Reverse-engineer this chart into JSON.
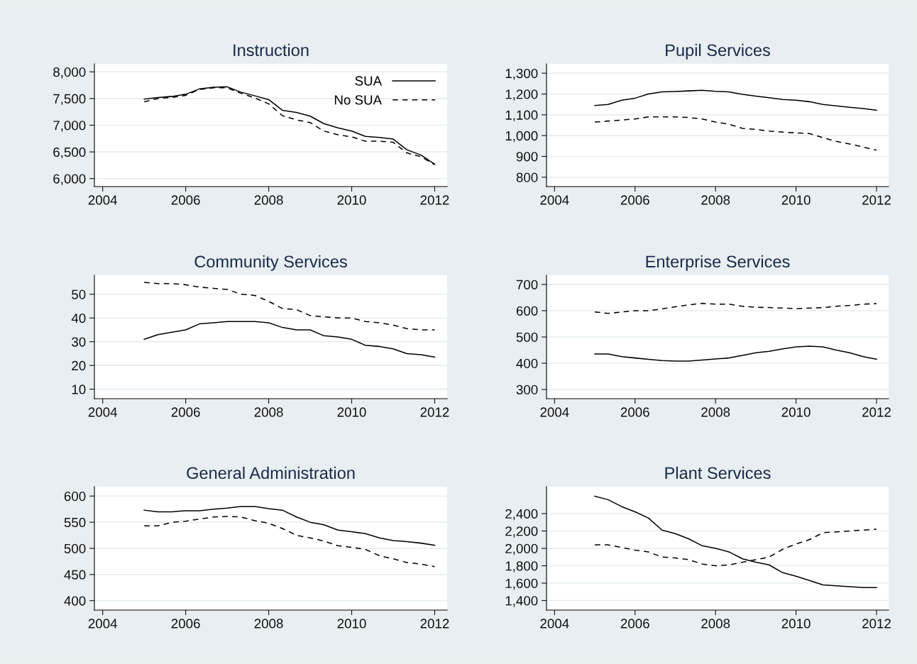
{
  "chart_data": [
    {
      "type": "line",
      "title": "Instruction",
      "x": [
        2005,
        2005.33,
        2005.67,
        2006,
        2006.33,
        2006.67,
        2007,
        2007.33,
        2007.67,
        2008,
        2008.33,
        2008.67,
        2009,
        2009.33,
        2009.67,
        2010,
        2010.33,
        2010.67,
        2011,
        2011.33,
        2011.67,
        2012
      ],
      "xlim": [
        2003.8,
        2012.3
      ],
      "xticks": [
        2004,
        2006,
        2008,
        2010,
        2012
      ],
      "ylim": [
        5850,
        8150
      ],
      "yticks": [
        {
          "value": 6000,
          "label": "6,000"
        },
        {
          "value": 6500,
          "label": "6,500"
        },
        {
          "value": 7000,
          "label": "7,000"
        },
        {
          "value": 7500,
          "label": "7,500"
        },
        {
          "value": 8000,
          "label": "8,000"
        }
      ],
      "grid": "y",
      "legend": "top right",
      "series": [
        {
          "name": "SUA",
          "color": "#000000",
          "line_style": "solid",
          "values": [
            7490,
            7520,
            7540,
            7580,
            7680,
            7710,
            7720,
            7620,
            7550,
            7480,
            7280,
            7240,
            7170,
            7030,
            6950,
            6890,
            6790,
            6770,
            6740,
            6540,
            6440,
            6270
          ]
        },
        {
          "name": "No SUA",
          "color": "#000000",
          "line_style": "dashed",
          "values": [
            7440,
            7500,
            7520,
            7560,
            7670,
            7700,
            7700,
            7600,
            7510,
            7400,
            7180,
            7100,
            7050,
            6890,
            6820,
            6780,
            6700,
            6700,
            6680,
            6480,
            6410,
            6260
          ]
        }
      ]
    },
    {
      "type": "line",
      "title": "Pupil Services",
      "x": [
        2005,
        2005.33,
        2005.67,
        2006,
        2006.33,
        2006.67,
        2007,
        2007.33,
        2007.67,
        2008,
        2008.33,
        2008.67,
        2009,
        2009.33,
        2009.67,
        2010,
        2010.33,
        2010.67,
        2011,
        2011.33,
        2011.67,
        2012
      ],
      "xlim": [
        2003.8,
        2012.3
      ],
      "xticks": [
        2004,
        2006,
        2008,
        2010,
        2012
      ],
      "ylim": [
        755,
        1345
      ],
      "yticks": [
        800,
        900,
        {
          "value": 1000,
          "label": "1,000"
        },
        {
          "value": 1100,
          "label": "1,100"
        },
        {
          "value": 1200,
          "label": "1,200"
        },
        {
          "value": 1300,
          "label": "1,300"
        }
      ],
      "grid": "y",
      "series": [
        {
          "color": "#000000",
          "line_style": "solid",
          "values": [
            1145,
            1150,
            1170,
            1180,
            1200,
            1210,
            1212,
            1215,
            1218,
            1213,
            1210,
            1198,
            1190,
            1182,
            1174,
            1170,
            1163,
            1150,
            1143,
            1136,
            1130,
            1122
          ]
        },
        {
          "color": "#000000",
          "line_style": "dashed",
          "values": [
            1065,
            1070,
            1075,
            1080,
            1090,
            1090,
            1090,
            1087,
            1080,
            1065,
            1055,
            1035,
            1030,
            1022,
            1017,
            1013,
            1010,
            990,
            972,
            960,
            945,
            930
          ]
        }
      ]
    },
    {
      "type": "line",
      "title": "Community Services",
      "x": [
        2005,
        2005.33,
        2005.67,
        2006,
        2006.33,
        2006.67,
        2007,
        2007.33,
        2007.67,
        2008,
        2008.33,
        2008.67,
        2009,
        2009.33,
        2009.67,
        2010,
        2010.33,
        2010.67,
        2011,
        2011.33,
        2011.67,
        2012
      ],
      "xlim": [
        2003.8,
        2012.3
      ],
      "xticks": [
        2004,
        2006,
        2008,
        2010,
        2012
      ],
      "ylim": [
        6,
        58
      ],
      "yticks": [
        10,
        20,
        30,
        40,
        50
      ],
      "grid": "y",
      "series": [
        {
          "color": "#000000",
          "line_style": "solid",
          "values": [
            31,
            33,
            34,
            35,
            37.5,
            38,
            38.5,
            38.5,
            38.5,
            38,
            36,
            35,
            35,
            32.5,
            32,
            31,
            28.5,
            28,
            27,
            25,
            24.5,
            23.5
          ]
        },
        {
          "color": "#000000",
          "line_style": "dashed",
          "values": [
            55,
            54.5,
            54.5,
            54,
            53,
            52.5,
            52,
            50,
            49.5,
            47,
            44,
            43.5,
            41,
            40.5,
            40,
            40,
            38.5,
            38,
            37,
            35.5,
            35,
            35
          ]
        }
      ]
    },
    {
      "type": "line",
      "title": "Enterprise Services",
      "x": [
        2005,
        2005.33,
        2005.67,
        2006,
        2006.33,
        2006.67,
        2007,
        2007.33,
        2007.67,
        2008,
        2008.33,
        2008.67,
        2009,
        2009.33,
        2009.67,
        2010,
        2010.33,
        2010.67,
        2011,
        2011.33,
        2011.67,
        2012
      ],
      "xlim": [
        2003.8,
        2012.3
      ],
      "xticks": [
        2004,
        2006,
        2008,
        2010,
        2012
      ],
      "ylim": [
        265,
        735
      ],
      "yticks": [
        300,
        400,
        500,
        600,
        700
      ],
      "grid": "y",
      "series": [
        {
          "color": "#000000",
          "line_style": "solid",
          "values": [
            435,
            435,
            425,
            420,
            415,
            410,
            408,
            408,
            412,
            416,
            420,
            430,
            440,
            445,
            455,
            462,
            465,
            462,
            450,
            440,
            425,
            415
          ]
        },
        {
          "color": "#000000",
          "line_style": "dashed",
          "values": [
            595,
            590,
            595,
            600,
            600,
            607,
            615,
            622,
            628,
            625,
            625,
            617,
            613,
            612,
            610,
            608,
            610,
            612,
            617,
            620,
            625,
            627
          ]
        }
      ]
    },
    {
      "type": "line",
      "title": "General Administration",
      "x": [
        2005,
        2005.33,
        2005.67,
        2006,
        2006.33,
        2006.67,
        2007,
        2007.33,
        2007.67,
        2008,
        2008.33,
        2008.67,
        2009,
        2009.33,
        2009.67,
        2010,
        2010.33,
        2010.67,
        2011,
        2011.33,
        2011.67,
        2012
      ],
      "xlim": [
        2003.8,
        2012.3
      ],
      "xticks": [
        2004,
        2006,
        2008,
        2010,
        2012
      ],
      "ylim": [
        382,
        618
      ],
      "yticks": [
        400,
        450,
        500,
        550,
        600
      ],
      "grid": "y",
      "series": [
        {
          "color": "#000000",
          "line_style": "solid",
          "values": [
            573,
            570,
            570,
            572,
            572,
            575,
            577,
            580,
            580,
            576,
            573,
            560,
            550,
            545,
            535,
            532,
            528,
            520,
            515,
            513,
            510,
            506
          ]
        },
        {
          "color": "#000000",
          "line_style": "dashed",
          "values": [
            543,
            543,
            550,
            552,
            556,
            560,
            561,
            560,
            553,
            548,
            538,
            525,
            520,
            514,
            505,
            502,
            498,
            486,
            480,
            473,
            470,
            465
          ]
        }
      ]
    },
    {
      "type": "line",
      "title": "Plant Services",
      "x": [
        2005,
        2005.33,
        2005.67,
        2006,
        2006.33,
        2006.67,
        2007,
        2007.33,
        2007.67,
        2008,
        2008.33,
        2008.67,
        2009,
        2009.33,
        2009.67,
        2010,
        2010.33,
        2010.67,
        2011,
        2011.33,
        2011.67,
        2012
      ],
      "xlim": [
        2003.8,
        2012.3
      ],
      "xticks": [
        2004,
        2006,
        2008,
        2010,
        2012
      ],
      "ylim": [
        1290,
        2710
      ],
      "yticks": [
        {
          "value": 1400,
          "label": "1,400"
        },
        {
          "value": 1600,
          "label": "1,600"
        },
        {
          "value": 1800,
          "label": "1,800"
        },
        {
          "value": 2000,
          "label": "2,000"
        },
        {
          "value": 2200,
          "label": "2,200"
        },
        {
          "value": 2400,
          "label": "2,400"
        }
      ],
      "grid": "y",
      "series": [
        {
          "color": "#000000",
          "line_style": "solid",
          "values": [
            2600,
            2560,
            2480,
            2420,
            2350,
            2210,
            2170,
            2110,
            2030,
            2000,
            1960,
            1880,
            1840,
            1810,
            1720,
            1680,
            1630,
            1580,
            1570,
            1560,
            1550,
            1550
          ]
        },
        {
          "color": "#000000",
          "line_style": "dashed",
          "values": [
            2040,
            2040,
            2010,
            1980,
            1960,
            1900,
            1890,
            1870,
            1820,
            1800,
            1810,
            1840,
            1870,
            1900,
            1990,
            2050,
            2100,
            2180,
            2190,
            2200,
            2210,
            2220
          ]
        }
      ]
    }
  ]
}
